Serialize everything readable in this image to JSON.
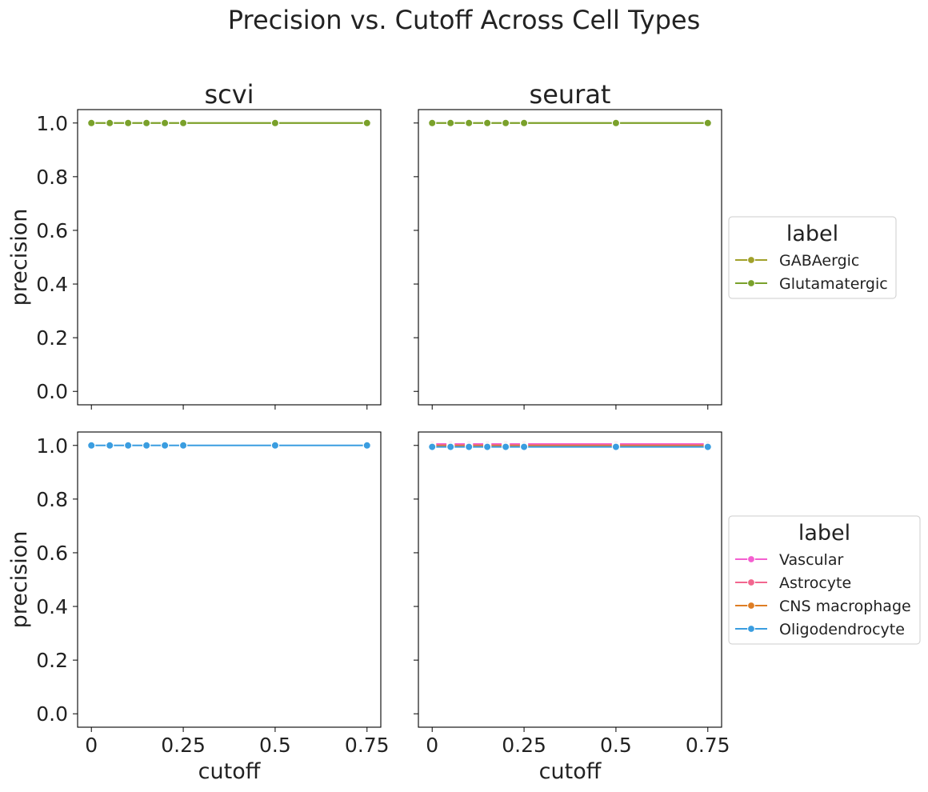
{
  "chart_data": {
    "type": "line",
    "title": "Precision vs. Cutoff Across Cell Types",
    "xlabel": "cutoff",
    "ylabel": "precision",
    "x_ticks": [
      "0",
      "0.25",
      "0.5",
      "0.75"
    ],
    "y_ticks": [
      "0.0",
      "0.2",
      "0.4",
      "0.6",
      "0.8",
      "1.0"
    ],
    "xlim": [
      -0.0375,
      0.7875
    ],
    "ylim": [
      -0.05,
      1.05
    ],
    "columns": [
      "scvi",
      "seurat"
    ],
    "rows": [
      {
        "legend_title": "label",
        "panels": [
          {
            "title": "scvi",
            "series": [
              {
                "name": "GABAergic",
                "color": "#a1a12a",
                "x": [
                  0,
                  0.05,
                  0.1,
                  0.15,
                  0.2,
                  0.25,
                  0.5,
                  0.75
                ],
                "y": [
                  1,
                  1,
                  1,
                  1,
                  1,
                  1,
                  1,
                  1
                ]
              },
              {
                "name": "Glutamatergic",
                "color": "#7aa12b",
                "x": [
                  0,
                  0.05,
                  0.1,
                  0.15,
                  0.2,
                  0.25,
                  0.5,
                  0.75
                ],
                "y": [
                  1,
                  1,
                  1,
                  1,
                  1,
                  1,
                  1,
                  1
                ]
              }
            ]
          },
          {
            "title": "seurat",
            "series": [
              {
                "name": "GABAergic",
                "color": "#a1a12a",
                "x": [
                  0,
                  0.05,
                  0.1,
                  0.15,
                  0.2,
                  0.25,
                  0.5,
                  0.75
                ],
                "y": [
                  1,
                  1,
                  1,
                  1,
                  1,
                  1,
                  1,
                  1
                ]
              },
              {
                "name": "Glutamatergic",
                "color": "#7aa12b",
                "x": [
                  0,
                  0.05,
                  0.1,
                  0.15,
                  0.2,
                  0.25,
                  0.5,
                  0.75
                ],
                "y": [
                  1,
                  1,
                  1,
                  1,
                  1,
                  1,
                  1,
                  1
                ]
              }
            ]
          }
        ],
        "legend": [
          {
            "name": "GABAergic",
            "color": "#a1a12a"
          },
          {
            "name": "Glutamatergic",
            "color": "#7aa12b"
          }
        ]
      },
      {
        "legend_title": "label",
        "panels": [
          {
            "title": "",
            "series": [
              {
                "name": "Oligodendrocyte",
                "color": "#3a9de0",
                "x": [
                  0,
                  0.05,
                  0.1,
                  0.15,
                  0.2,
                  0.25,
                  0.5,
                  0.75
                ],
                "y": [
                  1,
                  1,
                  1,
                  1,
                  1,
                  1,
                  1,
                  1
                ]
              }
            ]
          },
          {
            "title": "",
            "series": [
              {
                "name": "Vascular",
                "color": "#f45fd0",
                "x": [
                  0,
                  0.05,
                  0.1,
                  0.15,
                  0.2,
                  0.25,
                  0.5,
                  0.75
                ],
                "y": [
                  1,
                  1,
                  1,
                  1,
                  1,
                  1,
                  1,
                  1
                ]
              },
              {
                "name": "Astrocyte",
                "color": "#f2668f",
                "x": [
                  0,
                  0.05,
                  0.1,
                  0.15,
                  0.2,
                  0.25,
                  0.5,
                  0.75
                ],
                "y": [
                  1,
                  1,
                  1,
                  1,
                  1,
                  1,
                  1,
                  1
                ]
              },
              {
                "name": "CNS macrophage",
                "color": "#de7d24",
                "x": [
                  0,
                  0.05,
                  0.1,
                  0.15,
                  0.2,
                  0.25,
                  0.5,
                  0.75
                ],
                "y": [
                  1,
                  1,
                  1,
                  1,
                  1,
                  1,
                  1,
                  1
                ]
              },
              {
                "name": "Oligodendrocyte",
                "color": "#3a9de0",
                "x": [
                  0,
                  0.05,
                  0.1,
                  0.15,
                  0.2,
                  0.25,
                  0.5,
                  0.75
                ],
                "y": [
                  1,
                  1,
                  1,
                  1,
                  1,
                  1,
                  1,
                  1
                ]
              }
            ]
          }
        ],
        "legend": [
          {
            "name": "Vascular",
            "color": "#f45fd0"
          },
          {
            "name": "Astrocyte",
            "color": "#f2668f"
          },
          {
            "name": "CNS macrophage",
            "color": "#de7d24"
          },
          {
            "name": "Oligodendrocyte",
            "color": "#3a9de0"
          }
        ]
      }
    ]
  }
}
